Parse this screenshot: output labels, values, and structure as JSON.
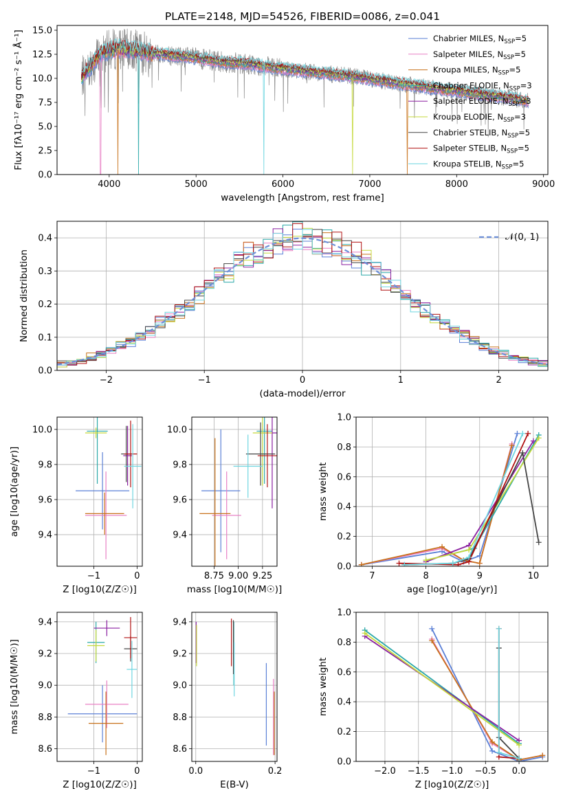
{
  "title": "PLATE=2148, MJD=54526, FIBERID=0086, z=0.041",
  "colors": {
    "chabrier_miles": "#5a7fd6",
    "salpeter_miles": "#e87fc4",
    "kroupa_miles": "#c8711a",
    "chabrier_elodie": "#2aa8a8",
    "salpeter_elodie": "#8a1fa0",
    "kroupa_elodie": "#c4d83a",
    "chabrier_stelib": "#444444",
    "salpeter_stelib": "#b01010",
    "kroupa_stelib": "#6fd6e0",
    "data": "#888888",
    "gaussian": "#6d8fd8",
    "grid": "#b0b0b0"
  },
  "chart_data": [
    {
      "type": "line",
      "panel": "spectrum",
      "title": "PLATE=2148, MJD=54526, FIBERID=0086, z=0.041",
      "xlabel": "wavelength [Angstrom, rest frame]",
      "ylabel": "Flux [fλ10⁻¹⁷ erg cm⁻² s⁻¹ Å⁻¹]",
      "xlim": [
        3400,
        9050
      ],
      "ylim": [
        0,
        15.5
      ],
      "xticks": [
        "4000",
        "5000",
        "6000",
        "7000",
        "8000",
        "9000"
      ],
      "yticks": [
        "0.0",
        "2.5",
        "5.0",
        "7.5",
        "10.0",
        "12.5",
        "15.0"
      ],
      "legend_position": "top-right",
      "continuum": {
        "x": [
          3680,
          3800,
          3900,
          4000,
          4100,
          4300,
          4500,
          4800,
          5000,
          5300,
          5600,
          5900,
          6200,
          6500,
          6800,
          7100,
          7400,
          7700,
          8000,
          8300,
          8600,
          8830
        ],
        "y": [
          10.0,
          11.5,
          12.6,
          12.9,
          13.1,
          12.9,
          12.6,
          12.3,
          12.1,
          11.7,
          11.5,
          11.1,
          10.8,
          10.5,
          10.2,
          9.8,
          9.4,
          9.0,
          8.7,
          8.3,
          8.0,
          7.6
        ]
      },
      "series": [
        {
          "name": "Chabrier MILES, N_SSP=5",
          "color_key": "chabrier_miles"
        },
        {
          "name": "Salpeter MILES, N_SSP=5",
          "color_key": "salpeter_miles"
        },
        {
          "name": "Kroupa MILES, N_SSP=5",
          "color_key": "kroupa_miles"
        },
        {
          "name": "Chabrier ELODIE, N_SSP=3",
          "color_key": "chabrier_elodie"
        },
        {
          "name": "Salpeter ELODIE, N_SSP=3",
          "color_key": "salpeter_elodie"
        },
        {
          "name": "Kroupa ELODIE, N_SSP=3",
          "color_key": "kroupa_elodie"
        },
        {
          "name": "Chabrier STELIB, N_SSP=5",
          "color_key": "chabrier_stelib"
        },
        {
          "name": "Salpeter STELIB, N_SSP=5",
          "color_key": "salpeter_stelib"
        },
        {
          "name": "Kroupa STELIB, N_SSP=5",
          "color_key": "kroupa_stelib"
        }
      ],
      "legend_labels": [
        {
          "main": "Chabrier MILES, N",
          "sub": "SSP",
          "tail": "=5"
        },
        {
          "main": "Salpeter MILES, N",
          "sub": "SSP",
          "tail": "=5"
        },
        {
          "main": "Kroupa MILES, N",
          "sub": "SSP",
          "tail": "=5"
        },
        {
          "main": "Chabrier ELODIE, N",
          "sub": "SSP",
          "tail": "=3"
        },
        {
          "main": "Salpeter ELODIE, N",
          "sub": "SSP",
          "tail": "=3"
        },
        {
          "main": "Kroupa ELODIE, N",
          "sub": "SSP",
          "tail": "=3"
        },
        {
          "main": "Chabrier STELIB, N",
          "sub": "SSP",
          "tail": "=5"
        },
        {
          "main": "Salpeter STELIB, N",
          "sub": "SSP",
          "tail": "=5"
        },
        {
          "main": "Kroupa STELIB, N",
          "sub": "SSP",
          "tail": "=5"
        }
      ]
    },
    {
      "type": "line",
      "panel": "residuals",
      "xlabel": "(data-model)/error",
      "ylabel": "Normed distribution",
      "xlim": [
        -2.5,
        2.5
      ],
      "ylim": [
        0,
        0.45
      ],
      "xticks": [
        "−2",
        "−1",
        "0",
        "1",
        "2"
      ],
      "yticks": [
        "0.0",
        "0.1",
        "0.2",
        "0.3",
        "0.4"
      ],
      "legend": "𝒩(0, 1)",
      "legend_position": "top-right",
      "gaussian": {
        "mean": 0,
        "sigma": 1
      },
      "bins": {
        "start": -2.5,
        "width": 0.1,
        "count": 50
      }
    },
    {
      "type": "scatter",
      "panel": "age_vs_Z",
      "xlabel": "Z [log10(Z/Z☉)]",
      "ylabel": "age [log10(age/yr)]",
      "xlim": [
        -1.85,
        0.12
      ],
      "ylim": [
        9.22,
        10.07
      ],
      "xticks": [
        "−1",
        "0"
      ],
      "yticks": [
        "9.4",
        "9.6",
        "9.8",
        "10.0"
      ],
      "points": [
        {
          "color_key": "chabrier_miles",
          "x": -0.8,
          "xerr": 0.62,
          "y": 9.65,
          "yerr": 0.22
        },
        {
          "color_key": "salpeter_miles",
          "x": -0.72,
          "xerr": 0.48,
          "y": 9.51,
          "yerr": 0.25
        },
        {
          "color_key": "kroupa_miles",
          "x": -0.75,
          "xerr": 0.45,
          "y": 9.52,
          "yerr": 0.12
        },
        {
          "color_key": "chabrier_elodie",
          "x": -0.92,
          "xerr": 0.24,
          "y": 9.99,
          "yerr": 0.3
        },
        {
          "color_key": "salpeter_elodie",
          "x": -0.22,
          "xerr": 0.1,
          "y": 9.85,
          "yerr": 0.17
        },
        {
          "color_key": "kroupa_elodie",
          "x": -0.95,
          "xerr": 0.25,
          "y": 9.98,
          "yerr": 0.03
        },
        {
          "color_key": "chabrier_stelib",
          "x": -0.25,
          "xerr": 0.12,
          "y": 9.86,
          "yerr": 0.16
        },
        {
          "color_key": "salpeter_stelib",
          "x": -0.15,
          "xerr": 0.15,
          "y": 9.86,
          "yerr": 0.19
        },
        {
          "color_key": "kroupa_stelib",
          "x": -0.1,
          "xerr": 0.2,
          "y": 9.79,
          "yerr": 0.24
        }
      ]
    },
    {
      "type": "scatter",
      "panel": "age_vs_mass",
      "xlabel": "mass [log10(M/M☉)]",
      "ylabel": "",
      "xlim": [
        8.52,
        9.4
      ],
      "ylim": [
        9.22,
        10.07
      ],
      "xticks": [
        "8.75",
        "9.00",
        "9.25"
      ],
      "yticks": [
        "9.4",
        "9.6",
        "9.8",
        "10.0"
      ],
      "points": [
        {
          "color_key": "chabrier_miles",
          "x": 8.82,
          "xerr": 0.2,
          "y": 9.65,
          "yerr": 0.35
        },
        {
          "color_key": "salpeter_miles",
          "x": 8.88,
          "xerr": 0.15,
          "y": 9.51,
          "yerr": 0.25
        },
        {
          "color_key": "kroupa_miles",
          "x": 8.76,
          "xerr": 0.16,
          "y": 9.52,
          "yerr": 0.43
        },
        {
          "color_key": "chabrier_elodie",
          "x": 9.27,
          "xerr": 0.08,
          "y": 9.99,
          "yerr": 0.3
        },
        {
          "color_key": "salpeter_elodie",
          "x": 9.35,
          "xerr": 0.1,
          "y": 9.98,
          "yerr": 0.43
        },
        {
          "color_key": "kroupa_elodie",
          "x": 9.25,
          "xerr": 0.1,
          "y": 9.98,
          "yerr": 0.3
        },
        {
          "color_key": "chabrier_stelib",
          "x": 9.23,
          "xerr": 0.15,
          "y": 9.86,
          "yerr": 0.18
        },
        {
          "color_key": "salpeter_stelib",
          "x": 9.3,
          "xerr": 0.1,
          "y": 9.85,
          "yerr": 0.18
        },
        {
          "color_key": "kroupa_stelib",
          "x": 9.1,
          "xerr": 0.15,
          "y": 9.79,
          "yerr": 0.18
        }
      ]
    },
    {
      "type": "line",
      "panel": "mass_weight_vs_age",
      "xlabel": "age [log10(age/yr)]",
      "ylabel": "mass weight",
      "xlim": [
        6.7,
        10.27
      ],
      "ylim": [
        0,
        1
      ],
      "xticks": [
        "7",
        "8",
        "9",
        "10"
      ],
      "yticks": [
        "0.0",
        "0.2",
        "0.4",
        "0.6",
        "0.8",
        "1.0"
      ],
      "series": [
        {
          "color_key": "chabrier_miles",
          "x": [
            6.8,
            8.3,
            8.7,
            9.0,
            9.7
          ],
          "y": [
            0.01,
            0.1,
            0.03,
            0.07,
            0.89
          ]
        },
        {
          "color_key": "salpeter_miles",
          "x": [
            6.8,
            8.3,
            8.7,
            9.0,
            9.6
          ],
          "y": [
            0.01,
            0.12,
            0.04,
            0.02,
            0.82
          ]
        },
        {
          "color_key": "kroupa_miles",
          "x": [
            6.8,
            8.3,
            8.7,
            9.0,
            9.6
          ],
          "y": [
            0.01,
            0.13,
            0.04,
            0.02,
            0.81
          ]
        },
        {
          "color_key": "chabrier_elodie",
          "x": [
            8.0,
            8.9,
            10.1
          ],
          "y": [
            0.04,
            0.12,
            0.88
          ]
        },
        {
          "color_key": "salpeter_elodie",
          "x": [
            8.0,
            8.8,
            10.0
          ],
          "y": [
            0.03,
            0.14,
            0.84
          ]
        },
        {
          "color_key": "kroupa_elodie",
          "x": [
            8.0,
            8.8,
            10.1
          ],
          "y": [
            0.04,
            0.11,
            0.86
          ]
        },
        {
          "color_key": "chabrier_stelib",
          "x": [
            7.6,
            8.5,
            8.8,
            9.8,
            10.1
          ],
          "y": [
            0.01,
            0.02,
            0.05,
            0.76,
            0.16
          ]
        },
        {
          "color_key": "salpeter_stelib",
          "x": [
            7.5,
            8.6,
            8.8,
            9.9
          ],
          "y": [
            0.02,
            0.01,
            0.03,
            0.89
          ]
        },
        {
          "color_key": "kroupa_stelib",
          "x": [
            7.6,
            8.5,
            8.8,
            9.8
          ],
          "y": [
            0.01,
            0.02,
            0.06,
            0.89
          ]
        }
      ]
    },
    {
      "type": "scatter",
      "panel": "mass_vs_Z",
      "xlabel": "Z [log10(Z/Z☉)]",
      "ylabel": "mass [log10(M/M☉)]",
      "xlim": [
        -1.85,
        0.12
      ],
      "ylim": [
        8.52,
        9.46
      ],
      "xticks": [
        "−1",
        "0"
      ],
      "yticks": [
        "8.6",
        "8.8",
        "9.0",
        "9.2",
        "9.4"
      ],
      "points": [
        {
          "color_key": "chabrier_miles",
          "x": -0.8,
          "xerr": 0.8,
          "y": 8.82,
          "yerr": 0.18
        },
        {
          "color_key": "salpeter_miles",
          "x": -0.7,
          "xerr": 0.5,
          "y": 8.88,
          "yerr": 0.15
        },
        {
          "color_key": "kroupa_miles",
          "x": -0.72,
          "xerr": 0.4,
          "y": 8.76,
          "yerr": 0.2
        },
        {
          "color_key": "chabrier_elodie",
          "x": -0.95,
          "xerr": 0.2,
          "y": 9.27,
          "yerr": 0.13
        },
        {
          "color_key": "salpeter_elodie",
          "x": -0.7,
          "xerr": 0.3,
          "y": 9.36,
          "yerr": 0.05
        },
        {
          "color_key": "kroupa_elodie",
          "x": -0.95,
          "xerr": 0.2,
          "y": 9.25,
          "yerr": 0.1
        },
        {
          "color_key": "chabrier_stelib",
          "x": -0.15,
          "xerr": 0.15,
          "y": 9.23,
          "yerr": 0.08
        },
        {
          "color_key": "salpeter_stelib",
          "x": -0.15,
          "xerr": 0.15,
          "y": 9.3,
          "yerr": 0.13
        },
        {
          "color_key": "kroupa_stelib",
          "x": -0.12,
          "xerr": 0.12,
          "y": 9.1,
          "yerr": 0.18
        }
      ]
    },
    {
      "type": "scatter",
      "panel": "mass_vs_ebv",
      "xlabel": "E(B-V)",
      "ylabel": "",
      "xlim": [
        -0.01,
        0.205
      ],
      "ylim": [
        8.52,
        9.46
      ],
      "xticks": [
        "0.0",
        "0.2"
      ],
      "yticks": [
        "8.6",
        "8.8",
        "9.0",
        "9.2",
        "9.4"
      ],
      "points": [
        {
          "color_key": "chabrier_miles",
          "x": 0.178,
          "xerr": 0,
          "y": 8.88,
          "yerr": 0.26
        },
        {
          "color_key": "salpeter_miles",
          "x": 0.196,
          "xerr": 0,
          "y": 8.8,
          "yerr": 0.24
        },
        {
          "color_key": "kroupa_miles",
          "x": 0.198,
          "xerr": 0,
          "y": 8.76,
          "yerr": 0.2
        },
        {
          "color_key": "chabrier_elodie",
          "x": 0.096,
          "xerr": 0,
          "y": 9.2,
          "yerr": 0.2
        },
        {
          "color_key": "salpeter_elodie",
          "x": 0.001,
          "xerr": 0,
          "y": 9.27,
          "yerr": 0.13
        },
        {
          "color_key": "kroupa_elodie",
          "x": 0.002,
          "xerr": 0,
          "y": 9.25,
          "yerr": 0.13
        },
        {
          "color_key": "chabrier_stelib",
          "x": 0.095,
          "xerr": 0,
          "y": 9.24,
          "yerr": 0.17
        },
        {
          "color_key": "salpeter_stelib",
          "x": 0.09,
          "xerr": 0,
          "y": 9.27,
          "yerr": 0.15
        },
        {
          "color_key": "kroupa_stelib",
          "x": 0.097,
          "xerr": 0,
          "y": 9.1,
          "yerr": 0.17
        }
      ]
    },
    {
      "type": "line",
      "panel": "mass_weight_vs_Z",
      "xlabel": "Z [log10(Z/Z☉)]",
      "ylabel": "mass weight",
      "xlim": [
        -2.43,
        0.43
      ],
      "ylim": [
        0,
        1
      ],
      "xticks": [
        "−2.0",
        "−1.5",
        "−1.0",
        "−0.5",
        "0.0"
      ],
      "yticks": [
        "0.0",
        "0.2",
        "0.4",
        "0.6",
        "0.8",
        "1.0"
      ],
      "series": [
        {
          "color_key": "chabrier_miles",
          "x": [
            -1.3,
            -0.4,
            0.0,
            0.35
          ],
          "y": [
            0.89,
            0.07,
            0.0,
            0.03
          ]
        },
        {
          "color_key": "salpeter_miles",
          "x": [
            -1.3,
            -0.4,
            0.0,
            0.35
          ],
          "y": [
            0.82,
            0.12,
            0.01,
            0.04
          ]
        },
        {
          "color_key": "kroupa_miles",
          "x": [
            -1.3,
            -0.4,
            0.0,
            0.35
          ],
          "y": [
            0.81,
            0.13,
            0.01,
            0.04
          ]
        },
        {
          "color_key": "chabrier_elodie",
          "x": [
            -2.3,
            0.0
          ],
          "y": [
            0.88,
            0.12
          ]
        },
        {
          "color_key": "salpeter_elodie",
          "x": [
            -2.3,
            0.0
          ],
          "y": [
            0.84,
            0.14
          ]
        },
        {
          "color_key": "kroupa_elodie",
          "x": [
            -2.3,
            0.0
          ],
          "y": [
            0.86,
            0.11
          ]
        },
        {
          "color_key": "chabrier_stelib",
          "x": [
            -0.3,
            -0.3,
            0.0
          ],
          "y": [
            0.76,
            0.16,
            0.02
          ]
        },
        {
          "color_key": "salpeter_stelib",
          "x": [
            -0.3,
            -0.3,
            0.0
          ],
          "y": [
            0.89,
            0.03,
            0.02
          ]
        },
        {
          "color_key": "kroupa_stelib",
          "x": [
            -0.3,
            -0.3,
            0.0
          ],
          "y": [
            0.89,
            0.06,
            0.02
          ]
        }
      ]
    }
  ]
}
